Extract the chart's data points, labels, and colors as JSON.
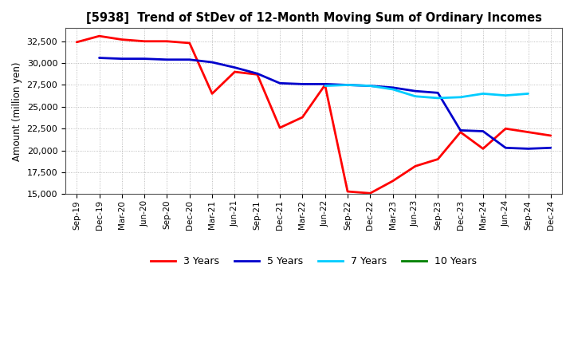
{
  "title": "[5938]  Trend of StDev of 12-Month Moving Sum of Ordinary Incomes",
  "ylabel": "Amount (million yen)",
  "background_color": "#ffffff",
  "grid_color": "#b0b0b0",
  "x_labels": [
    "Sep-19",
    "Dec-19",
    "Mar-20",
    "Jun-20",
    "Sep-20",
    "Dec-20",
    "Mar-21",
    "Jun-21",
    "Sep-21",
    "Dec-21",
    "Mar-22",
    "Jun-22",
    "Sep-22",
    "Dec-22",
    "Mar-23",
    "Jun-23",
    "Sep-23",
    "Dec-23",
    "Mar-24",
    "Jun-24",
    "Sep-24",
    "Dec-24"
  ],
  "ylim": [
    15000,
    34000
  ],
  "yticks": [
    15000,
    17500,
    20000,
    22500,
    25000,
    27500,
    30000,
    32500
  ],
  "series": {
    "3 Years": {
      "color": "#ff0000",
      "values": [
        32400,
        33100,
        32700,
        32500,
        32500,
        32300,
        26500,
        29000,
        28700,
        22600,
        23800,
        27500,
        15300,
        15100,
        16500,
        18200,
        19000,
        22100,
        20200,
        22500,
        22100,
        21700
      ]
    },
    "5 Years": {
      "color": "#0000cc",
      "values": [
        null,
        30600,
        30500,
        30500,
        30400,
        30400,
        30100,
        29500,
        28800,
        27700,
        27600,
        27600,
        27500,
        27400,
        27200,
        26800,
        26600,
        22300,
        22200,
        20300,
        20200,
        20300
      ]
    },
    "7 Years": {
      "color": "#00ccff",
      "values": [
        null,
        null,
        null,
        null,
        null,
        null,
        null,
        null,
        null,
        null,
        null,
        27400,
        27500,
        27400,
        27000,
        26200,
        26000,
        26100,
        26500,
        26300,
        26500,
        null
      ]
    },
    "10 Years": {
      "color": "#008000",
      "values": [
        null,
        null,
        null,
        null,
        null,
        null,
        null,
        null,
        null,
        null,
        null,
        null,
        null,
        null,
        null,
        null,
        null,
        null,
        null,
        null,
        null,
        null
      ]
    }
  },
  "legend_labels": [
    "3 Years",
    "5 Years",
    "7 Years",
    "10 Years"
  ],
  "legend_colors": [
    "#ff0000",
    "#0000cc",
    "#00ccff",
    "#008000"
  ]
}
